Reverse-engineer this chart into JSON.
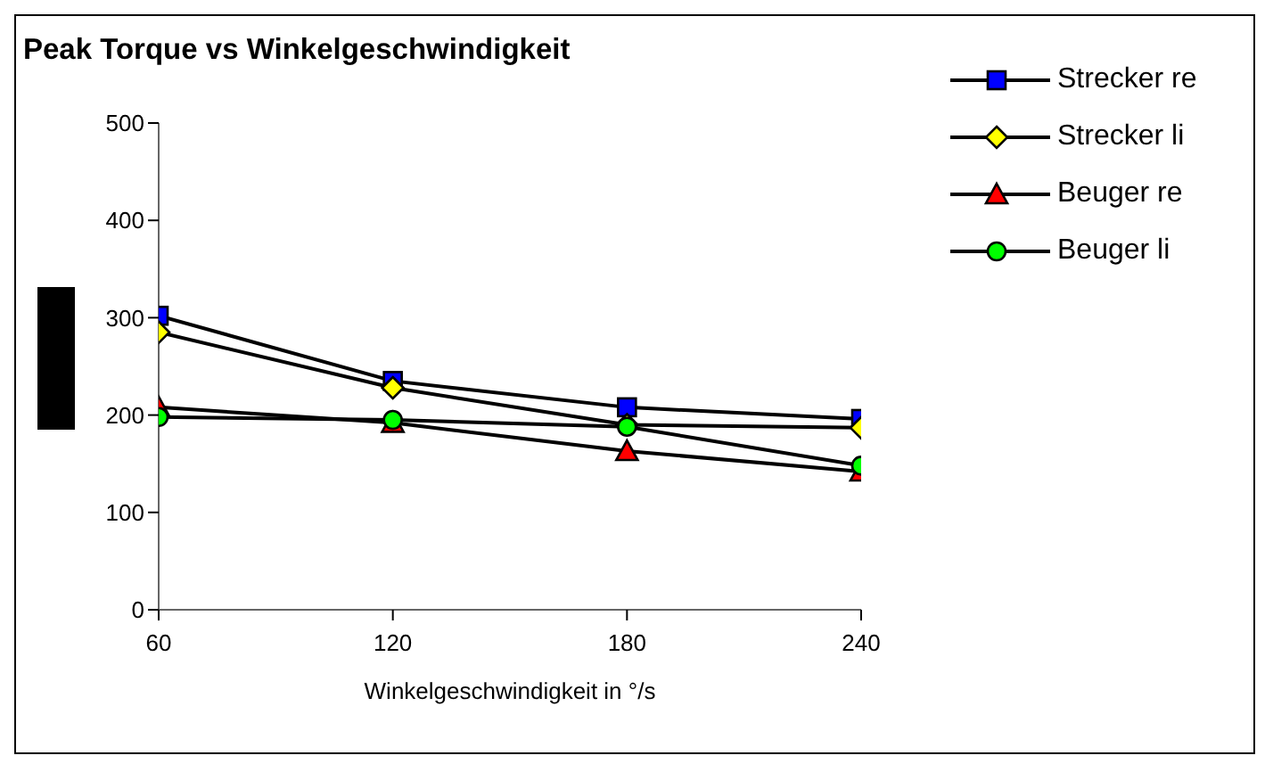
{
  "chart_data": {
    "type": "line",
    "title": "Peak Torque vs Winkelgeschwindigkeit",
    "xlabel": "Winkelgeschwindigkeit in °/s",
    "x": [
      60,
      120,
      180,
      240
    ],
    "xlim": [
      60,
      240
    ],
    "xticks": [
      60,
      120,
      180,
      240
    ],
    "ylim": [
      0,
      500
    ],
    "yticks": [
      0,
      100,
      200,
      300,
      400,
      500
    ],
    "grid": false,
    "legend": "top right",
    "series": [
      {
        "name": "Strecker re",
        "color": "#0000ff",
        "marker": "square",
        "values": [
          302,
          235,
          208,
          196
        ]
      },
      {
        "name": "Strecker li",
        "color": "#ffff00",
        "marker": "diamond",
        "values": [
          285,
          228,
          190,
          187
        ]
      },
      {
        "name": "Beuger re",
        "color": "#ff0000",
        "marker": "triangle",
        "values": [
          208,
          192,
          163,
          142
        ]
      },
      {
        "name": "Beuger li",
        "color": "#00ff00",
        "marker": "circle",
        "values": [
          198,
          195,
          188,
          148
        ]
      }
    ]
  }
}
